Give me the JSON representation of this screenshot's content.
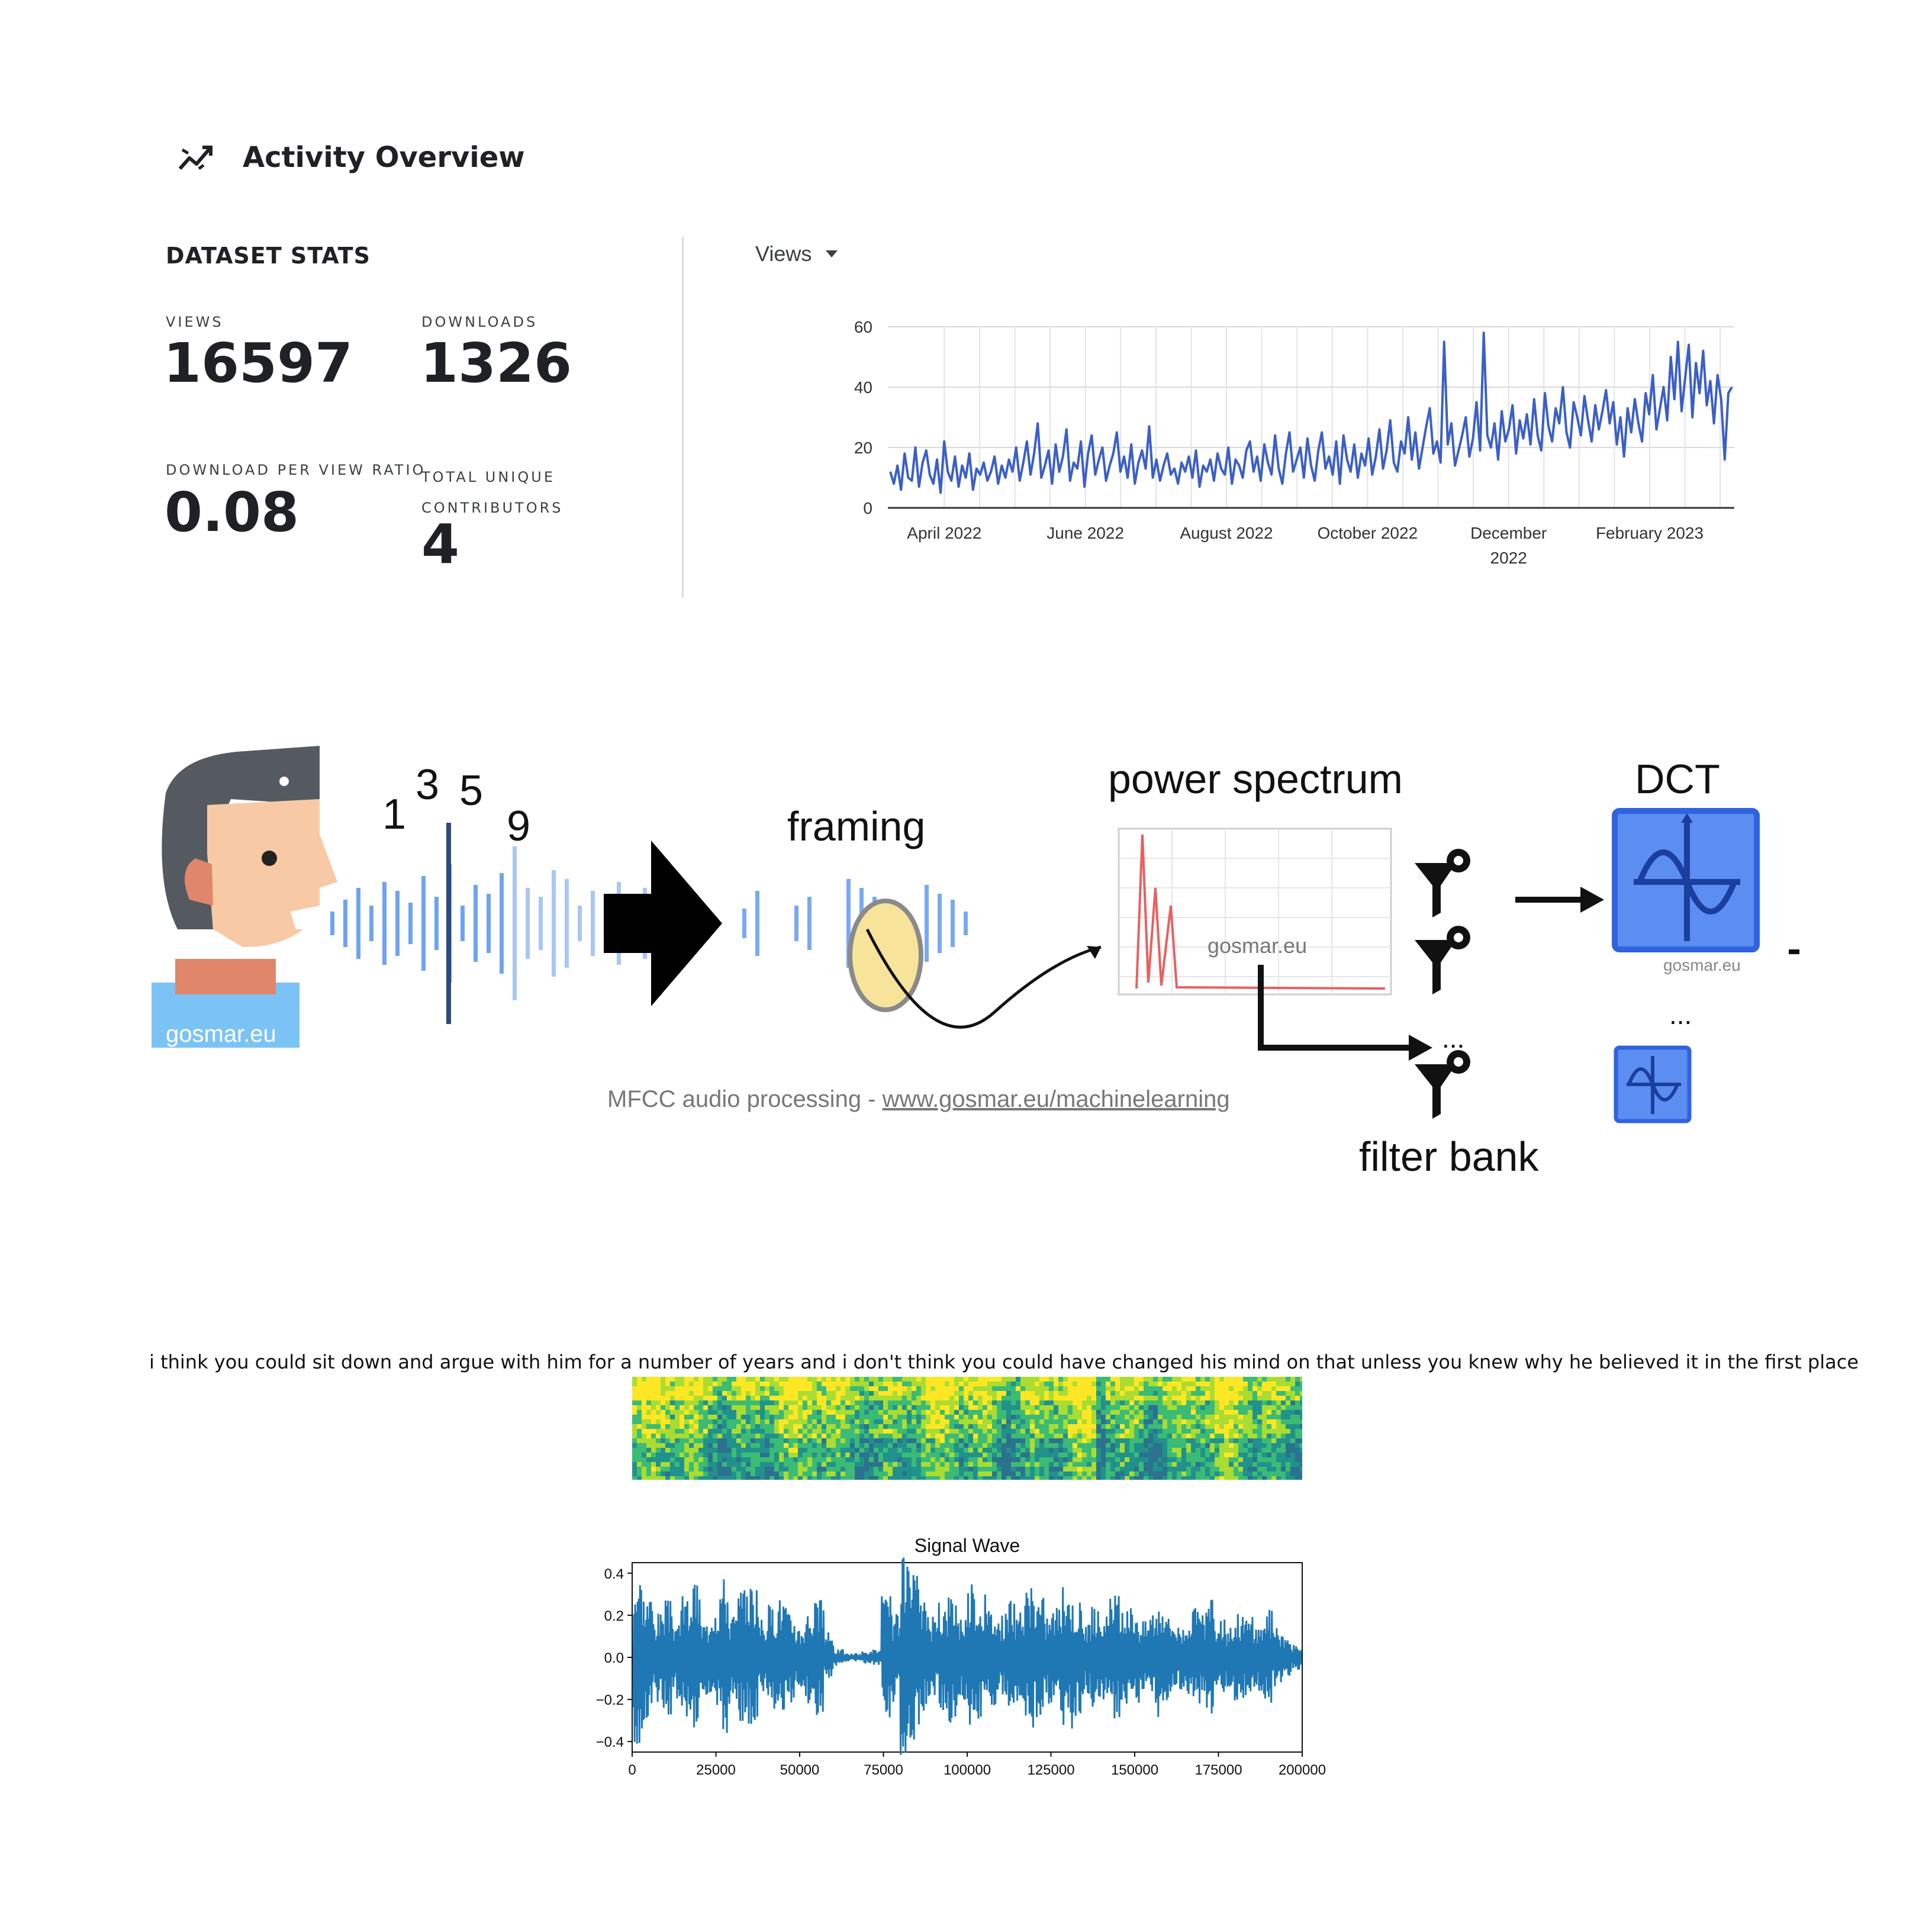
{
  "header": {
    "title": "Activity Overview",
    "icon": "trending-line-icon"
  },
  "stats": {
    "heading": "DATASET STATS",
    "views_label": "VIEWS",
    "views_value": "16597",
    "downloads_label": "DOWNLOADS",
    "downloads_value": "1326",
    "ratio_label": "DOWNLOAD PER VIEW RATIO",
    "ratio_value": "0.08",
    "contributors_label_1": "TOTAL UNIQUE",
    "contributors_label_2": "CONTRIBUTORS",
    "contributors_value": "4"
  },
  "metric_select": {
    "value": "Views"
  },
  "chart_data": [
    {
      "type": "line",
      "y_ticks": [
        "0",
        "20",
        "40",
        "60"
      ],
      "ylim": [
        0,
        60
      ],
      "x_ticks": [
        {
          "label": "April 2022",
          "pos": 1
        },
        {
          "label": "June 2022",
          "pos": 3
        },
        {
          "label": "August 2022",
          "pos": 5
        },
        {
          "label": "October 2022",
          "pos": 7
        },
        {
          "label": "December 2022",
          "pos": 9
        },
        {
          "label": "February 2023",
          "pos": 11
        }
      ],
      "xlim": [
        0.2,
        12.2
      ],
      "color": "#3b5fc7",
      "series": [
        {
          "values": [
            12,
            8,
            14,
            6,
            18,
            10,
            9,
            20,
            7,
            15,
            19,
            11,
            8,
            16,
            5,
            22,
            12,
            9,
            17,
            7,
            14,
            10,
            18,
            6,
            13,
            11,
            15,
            9,
            12,
            17,
            8,
            14,
            10,
            16,
            12,
            20,
            9,
            15,
            22,
            11,
            18,
            28,
            10,
            14,
            19,
            8,
            21,
            12,
            17,
            26,
            9,
            15,
            13,
            22,
            7,
            18,
            24,
            11,
            16,
            20,
            9,
            14,
            18,
            25,
            12,
            17,
            10,
            21,
            8,
            15,
            19,
            13,
            27,
            10,
            16,
            9,
            14,
            18,
            11,
            13,
            8,
            15,
            12,
            17,
            10,
            19,
            7,
            14,
            12,
            16,
            9,
            18,
            13,
            11,
            20,
            8,
            16,
            14,
            10,
            19,
            22,
            12,
            17,
            9,
            21,
            15,
            11,
            24,
            13,
            8,
            18,
            25,
            12,
            16,
            20,
            10,
            23,
            14,
            9,
            19,
            25,
            13,
            17,
            11,
            22,
            8,
            24,
            16,
            12,
            21,
            10,
            18,
            14,
            23,
            11,
            17,
            26,
            13,
            19,
            29,
            15,
            12,
            22,
            18,
            30,
            16,
            25,
            13,
            20,
            27,
            33,
            18,
            22,
            15,
            55,
            21,
            28,
            14,
            19,
            24,
            30,
            17,
            23,
            35,
            19,
            58,
            24,
            20,
            28,
            16,
            32,
            22,
            26,
            34,
            18,
            29,
            23,
            31,
            21,
            36,
            24,
            19,
            38,
            27,
            22,
            33,
            28,
            40,
            25,
            20,
            35,
            30,
            24,
            37,
            29,
            22,
            34,
            26,
            32,
            39,
            28,
            35,
            21,
            30,
            17,
            33,
            25,
            36,
            28,
            22,
            38,
            31,
            44,
            26,
            33,
            40,
            29,
            50,
            36,
            55,
            32,
            43,
            54,
            30,
            48,
            38,
            52,
            34,
            42,
            28,
            44,
            36,
            16,
            38,
            40
          ]
        }
      ]
    },
    {
      "type": "heatmap",
      "description_colors": [
        "#2c728e",
        "#21918c",
        "#3bbb75",
        "#aadc32",
        "#fde725"
      ]
    },
    {
      "type": "line",
      "title": "Signal Wave",
      "y_ticks": [
        "0.4",
        "0.2",
        "0.0",
        "−0.2",
        "−0.4"
      ],
      "ylim": [
        -0.45,
        0.45
      ],
      "x_ticks": [
        "0",
        "25000",
        "50000",
        "75000",
        "100000",
        "125000",
        "150000",
        "175000",
        "200000"
      ],
      "xlim": [
        0,
        200000
      ],
      "color": "#1f77b4",
      "envelope": [
        0.42,
        0.32,
        0.22,
        0.28,
        0.2,
        0.3,
        0.36,
        0.18,
        0.3,
        0.4,
        0.22,
        0.32,
        0.38,
        0.2,
        0.26,
        0.3,
        0.22,
        0.16,
        0.24,
        0.28,
        0.12,
        0.04,
        0.02,
        0.02,
        0.03,
        0.04,
        0.3,
        0.22,
        0.48,
        0.4,
        0.28,
        0.2,
        0.26,
        0.32,
        0.22,
        0.36,
        0.3,
        0.24,
        0.2,
        0.28,
        0.22,
        0.34,
        0.3,
        0.22,
        0.26,
        0.34,
        0.28,
        0.18,
        0.24,
        0.2,
        0.3,
        0.22,
        0.26,
        0.18,
        0.24,
        0.3,
        0.2,
        0.16,
        0.24,
        0.22,
        0.28,
        0.18,
        0.14,
        0.22,
        0.2,
        0.16,
        0.24,
        0.14,
        0.1,
        0.06
      ]
    }
  ],
  "diagram": {
    "numbers": [
      "1",
      "3",
      "5",
      "9"
    ],
    "framing_label": "framing",
    "power_label": "power spectrum",
    "dct_label": "DCT",
    "filter_label": "filter bank",
    "watermark": "gosmar.eu",
    "dots": "...",
    "caption_prefix": "MFCC audio processing - ",
    "caption_link": "www.gosmar.eu/machinelearning"
  },
  "transcript": "i think you could sit down and argue with him for a number of years and i don't think you could have changed his mind on that unless you knew why he believed it in the first place"
}
